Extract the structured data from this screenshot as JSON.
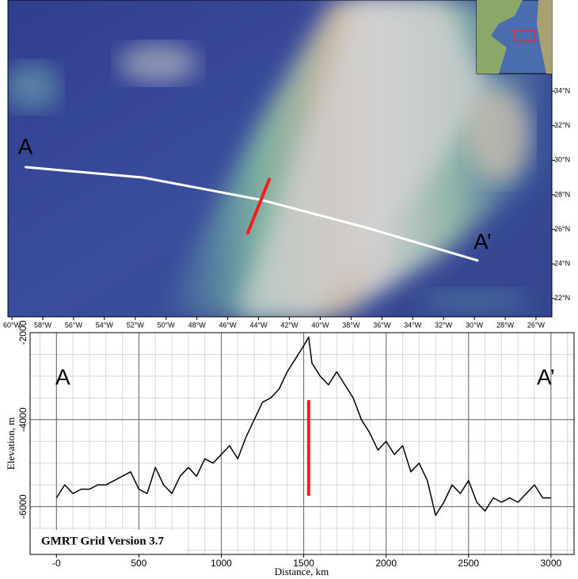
{
  "map": {
    "lonlim": [
      -60.26,
      -24.97
    ],
    "latlim": [
      20.94,
      39.27
    ],
    "lon_ticks": [
      {
        "value": -60,
        "label": "60°W"
      },
      {
        "value": -58,
        "label": "58°W"
      },
      {
        "value": -56,
        "label": "56°W"
      },
      {
        "value": -54,
        "label": "54°W"
      },
      {
        "value": -52,
        "label": "52°W"
      },
      {
        "value": -50,
        "label": "50°W"
      },
      {
        "value": -48,
        "label": "48°W"
      },
      {
        "value": -46,
        "label": "46°W"
      },
      {
        "value": -44,
        "label": "44°W"
      },
      {
        "value": -42,
        "label": "42°W"
      },
      {
        "value": -40,
        "label": "40°W"
      },
      {
        "value": -38,
        "label": "38°W"
      },
      {
        "value": -36,
        "label": "36°W"
      },
      {
        "value": -34,
        "label": "34°W"
      },
      {
        "value": -32,
        "label": "32°W"
      },
      {
        "value": -30,
        "label": "30°W"
      },
      {
        "value": -28,
        "label": "28°W"
      },
      {
        "value": -26,
        "label": "26°W"
      }
    ],
    "lat_ticks": [
      {
        "value": 34,
        "label": "34°N"
      },
      {
        "value": 32,
        "label": "32°N"
      },
      {
        "value": 30,
        "label": "30°N"
      },
      {
        "value": 28,
        "label": "28°N"
      },
      {
        "value": 26,
        "label": "26°N"
      },
      {
        "value": 24,
        "label": "24°N"
      },
      {
        "value": 22,
        "label": "22°N"
      }
    ],
    "profile_line": {
      "lon": [
        -59.1,
        -51.5,
        -43.8,
        -37,
        -29.8
      ],
      "lat": [
        29.6,
        29.0,
        27.7,
        26.1,
        24.2
      ],
      "color": "#ffffff"
    },
    "crossing": {
      "lon": [
        -44.7,
        -43.3
      ],
      "lat": [
        25.8,
        28.9
      ],
      "color": "#ff1a1a"
    },
    "start_label": "A",
    "end_label": "A’"
  },
  "chart_data": {
    "type": "line",
    "start_label": "A",
    "end_label": "A’",
    "xlabel": "Distance, km",
    "ylabel": "Elevation, m",
    "footer": "GMRT Grid Version 3.7",
    "x": [
      0,
      50,
      100,
      150,
      200,
      250,
      300,
      350,
      400,
      450,
      500,
      550,
      600,
      650,
      700,
      750,
      800,
      850,
      900,
      950,
      1000,
      1050,
      1100,
      1150,
      1200,
      1250,
      1300,
      1350,
      1400,
      1450,
      1500,
      1530,
      1550,
      1600,
      1650,
      1700,
      1750,
      1800,
      1850,
      1900,
      1950,
      2000,
      2050,
      2100,
      2150,
      2200,
      2250,
      2300,
      2350,
      2400,
      2450,
      2500,
      2550,
      2600,
      2650,
      2700,
      2750,
      2800,
      2850,
      2900,
      2950,
      3000
    ],
    "series": [
      {
        "name": "Elevation",
        "color": "#000000",
        "values": [
          -5800,
          -5500,
          -5700,
          -5600,
          -5600,
          -5500,
          -5500,
          -5400,
          -5300,
          -5200,
          -5600,
          -5700,
          -5100,
          -5500,
          -5700,
          -5300,
          -5100,
          -5300,
          -4900,
          -5000,
          -4800,
          -4600,
          -4900,
          -4400,
          -4000,
          -3600,
          -3500,
          -3300,
          -2900,
          -2600,
          -2300,
          -2100,
          -2700,
          -3000,
          -3200,
          -2900,
          -3200,
          -3500,
          -4000,
          -4300,
          -4700,
          -4500,
          -4800,
          -4600,
          -5200,
          -5000,
          -5400,
          -6200,
          -5900,
          -5500,
          -5700,
          -5400,
          -5900,
          -6100,
          -5800,
          -5900,
          -5800,
          -5900,
          -5700,
          -5500,
          -5800,
          -5800
        ]
      }
    ],
    "marker": {
      "x": 1530,
      "y": [
        -3550,
        -5750
      ],
      "color": "#ff1a1a"
    },
    "xlim": [
      -160,
      3140
    ],
    "ylim": [
      -7100,
      -2000
    ],
    "xticks": [
      {
        "value": 0,
        "label": "-0"
      },
      500,
      1000,
      1500,
      2000,
      2500,
      3000
    ],
    "yticks": [
      -2000,
      -4000,
      -6000
    ],
    "grid": true
  }
}
